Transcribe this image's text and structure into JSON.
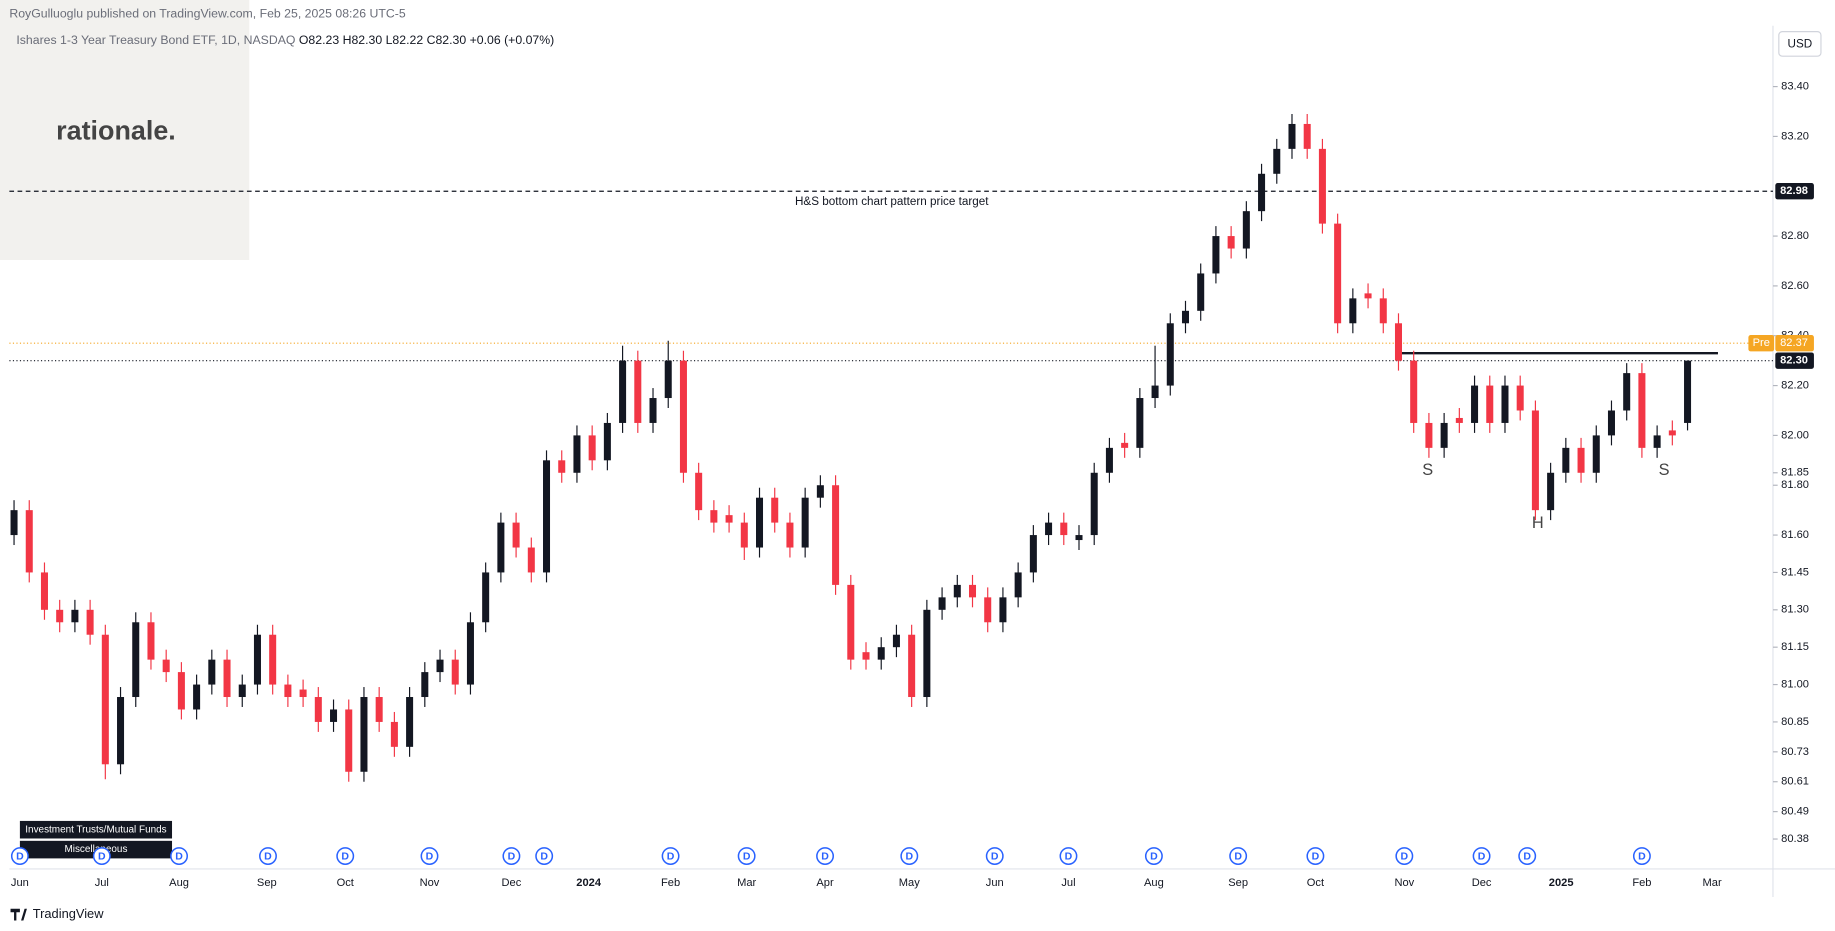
{
  "header": {
    "publisher": "RoyGulluoglu published on TradingView.com, Feb 25, 2025 08:26 UTC-5",
    "logo": "rationale.",
    "footer": "TradingView"
  },
  "legend": {
    "name": "Ishares 1-3 Year Treasury Bond ETF, 1D, NASDAQ",
    "open": "O82.23",
    "high": "H82.30",
    "low": "L82.22",
    "close": "C82.30",
    "change": "+0.06 (+0.07%)"
  },
  "tags": [
    "Investment Trusts/Mutual Funds",
    "Miscellaneous"
  ],
  "dividend_label": "D",
  "dividends": [
    "D",
    "D",
    "D",
    "D",
    "D",
    "D",
    "D",
    "D",
    "D",
    "D",
    "D",
    "D",
    "D",
    "D",
    "D",
    "D",
    "D",
    "D",
    "D",
    "D",
    "D"
  ],
  "chart_data": {
    "type": "candlestick",
    "currency": "USD",
    "up_color": "#131722",
    "down_color": "#f23645",
    "ylim": [
      80.26,
      83.63
    ],
    "yticks": [
      {
        "value": 83.4,
        "label": "83.40"
      },
      {
        "value": 83.2,
        "label": "83.20"
      },
      {
        "value": 82.8,
        "label": "82.80"
      },
      {
        "value": 82.6,
        "label": "82.60"
      },
      {
        "value": 82.4,
        "label": "82.40"
      },
      {
        "value": 82.2,
        "label": "82.20"
      },
      {
        "value": 82,
        "label": "82.00"
      },
      {
        "value": 81.8,
        "label": "81.80"
      },
      {
        "value": 81.6,
        "label": "81.60"
      },
      81.45,
      {
        "value": 81.3,
        "label": "81.30"
      },
      81.15,
      {
        "value": 81,
        "label": "81.00"
      },
      81.85,
      80.85,
      80.73,
      80.61,
      80.49,
      80.38
    ],
    "categories": [
      "Jun",
      "Jul",
      "Aug",
      "Sep",
      "Oct",
      "Nov",
      "Dec",
      "2024",
      "Feb",
      "Mar",
      "Apr",
      "May",
      "Jun",
      "Jul",
      "Aug",
      "Sep",
      "Oct",
      "Nov",
      "Dec",
      "2025",
      "Feb",
      "Mar"
    ],
    "candles": [
      [
        81.6,
        81.74,
        81.56,
        81.7
      ],
      [
        81.7,
        81.74,
        81.41,
        81.45
      ],
      [
        81.45,
        81.49,
        81.26,
        81.3
      ],
      [
        81.3,
        81.34,
        81.21,
        81.25
      ],
      [
        81.25,
        81.34,
        81.21,
        81.3
      ],
      [
        81.3,
        81.34,
        81.16,
        81.2
      ],
      [
        81.2,
        81.24,
        80.62,
        80.68
      ],
      [
        80.68,
        80.99,
        80.64,
        80.95
      ],
      [
        80.95,
        81.29,
        80.91,
        81.25
      ],
      [
        81.25,
        81.29,
        81.06,
        81.1
      ],
      [
        81.1,
        81.14,
        81.01,
        81.05
      ],
      [
        81.05,
        81.09,
        80.86,
        80.9
      ],
      [
        80.9,
        81.04,
        80.86,
        81.0
      ],
      [
        81.0,
        81.14,
        80.96,
        81.1
      ],
      [
        81.1,
        81.14,
        80.91,
        80.95
      ],
      [
        80.95,
        81.04,
        80.91,
        81.0
      ],
      [
        81.0,
        81.24,
        80.96,
        81.2
      ],
      [
        81.2,
        81.24,
        80.96,
        81.0
      ],
      [
        81.0,
        81.04,
        80.91,
        80.95
      ],
      [
        80.98,
        81.02,
        80.91,
        80.95
      ],
      [
        80.95,
        80.99,
        80.81,
        80.85
      ],
      [
        80.85,
        80.94,
        80.81,
        80.9
      ],
      [
        80.9,
        80.94,
        80.61,
        80.65
      ],
      [
        80.65,
        80.99,
        80.61,
        80.95
      ],
      [
        80.95,
        80.99,
        80.81,
        80.85
      ],
      [
        80.85,
        80.89,
        80.71,
        80.75
      ],
      [
        80.75,
        80.99,
        80.71,
        80.95
      ],
      [
        80.95,
        81.09,
        80.91,
        81.05
      ],
      [
        81.05,
        81.14,
        81.01,
        81.1
      ],
      [
        81.1,
        81.14,
        80.96,
        81.0
      ],
      [
        81.0,
        81.29,
        80.96,
        81.25
      ],
      [
        81.25,
        81.49,
        81.21,
        81.45
      ],
      [
        81.45,
        81.69,
        81.41,
        81.65
      ],
      [
        81.65,
        81.69,
        81.51,
        81.55
      ],
      [
        81.55,
        81.59,
        81.41,
        81.45
      ],
      [
        81.45,
        81.94,
        81.41,
        81.9
      ],
      [
        81.9,
        81.94,
        81.81,
        81.85
      ],
      [
        81.85,
        82.04,
        81.81,
        82.0
      ],
      [
        82.0,
        82.04,
        81.86,
        81.9
      ],
      [
        81.9,
        82.09,
        81.86,
        82.05
      ],
      [
        82.05,
        82.36,
        82.01,
        82.3
      ],
      [
        82.3,
        82.34,
        82.01,
        82.05
      ],
      [
        82.05,
        82.19,
        82.01,
        82.15
      ],
      [
        82.15,
        82.38,
        82.11,
        82.3
      ],
      [
        82.3,
        82.34,
        81.81,
        81.85
      ],
      [
        81.85,
        81.89,
        81.66,
        81.7
      ],
      [
        81.7,
        81.74,
        81.61,
        81.65
      ],
      [
        81.68,
        81.72,
        81.61,
        81.65
      ],
      [
        81.65,
        81.69,
        81.5,
        81.55
      ],
      [
        81.55,
        81.79,
        81.51,
        81.75
      ],
      [
        81.75,
        81.79,
        81.61,
        81.65
      ],
      [
        81.65,
        81.69,
        81.51,
        81.55
      ],
      [
        81.55,
        81.79,
        81.51,
        81.75
      ],
      [
        81.75,
        81.84,
        81.71,
        81.8
      ],
      [
        81.8,
        81.84,
        81.36,
        81.4
      ],
      [
        81.4,
        81.44,
        81.06,
        81.1
      ],
      [
        81.13,
        81.17,
        81.06,
        81.1
      ],
      [
        81.1,
        81.19,
        81.06,
        81.15
      ],
      [
        81.15,
        81.24,
        81.11,
        81.2
      ],
      [
        81.2,
        81.24,
        80.91,
        80.95
      ],
      [
        80.95,
        81.34,
        80.91,
        81.3
      ],
      [
        81.3,
        81.39,
        81.26,
        81.35
      ],
      [
        81.35,
        81.44,
        81.31,
        81.4
      ],
      [
        81.4,
        81.44,
        81.31,
        81.35
      ],
      [
        81.35,
        81.39,
        81.21,
        81.25
      ],
      [
        81.25,
        81.39,
        81.21,
        81.35
      ],
      [
        81.35,
        81.49,
        81.31,
        81.45
      ],
      [
        81.45,
        81.64,
        81.41,
        81.6
      ],
      [
        81.6,
        81.69,
        81.56,
        81.65
      ],
      [
        81.65,
        81.69,
        81.56,
        81.6
      ],
      [
        81.58,
        81.64,
        81.54,
        81.6
      ],
      [
        81.6,
        81.89,
        81.56,
        81.85
      ],
      [
        81.85,
        81.99,
        81.81,
        81.95
      ],
      [
        81.97,
        82.01,
        81.91,
        81.95
      ],
      [
        81.95,
        82.19,
        81.91,
        82.15
      ],
      [
        82.15,
        82.36,
        82.11,
        82.2
      ],
      [
        82.2,
        82.49,
        82.16,
        82.45
      ],
      [
        82.45,
        82.54,
        82.41,
        82.5
      ],
      [
        82.5,
        82.69,
        82.46,
        82.65
      ],
      [
        82.65,
        82.84,
        82.61,
        82.8
      ],
      [
        82.8,
        82.84,
        82.71,
        82.75
      ],
      [
        82.75,
        82.94,
        82.71,
        82.9
      ],
      [
        82.9,
        83.09,
        82.86,
        83.05
      ],
      [
        83.05,
        83.19,
        83.01,
        83.15
      ],
      [
        83.15,
        83.29,
        83.11,
        83.25
      ],
      [
        83.25,
        83.29,
        83.11,
        83.15
      ],
      [
        83.15,
        83.19,
        82.81,
        82.85
      ],
      [
        82.85,
        82.89,
        82.41,
        82.45
      ],
      [
        82.45,
        82.59,
        82.41,
        82.55
      ],
      [
        82.57,
        82.61,
        82.51,
        82.55
      ],
      [
        82.55,
        82.59,
        82.41,
        82.45
      ],
      [
        82.45,
        82.49,
        82.26,
        82.3
      ],
      [
        82.3,
        82.34,
        82.01,
        82.05
      ],
      [
        82.05,
        82.09,
        81.91,
        81.95
      ],
      [
        81.95,
        82.09,
        81.91,
        82.05
      ],
      [
        82.07,
        82.11,
        82.01,
        82.05
      ],
      [
        82.05,
        82.24,
        82.01,
        82.2
      ],
      [
        82.2,
        82.24,
        82.01,
        82.05
      ],
      [
        82.05,
        82.24,
        82.01,
        82.2
      ],
      [
        82.2,
        82.24,
        82.06,
        82.1
      ],
      [
        82.1,
        82.14,
        81.66,
        81.7
      ],
      [
        81.7,
        81.89,
        81.66,
        81.85
      ],
      [
        81.85,
        81.99,
        81.81,
        81.95
      ],
      [
        81.95,
        81.99,
        81.81,
        81.85
      ],
      [
        81.85,
        82.04,
        81.81,
        82.0
      ],
      [
        82.0,
        82.14,
        81.96,
        82.1
      ],
      [
        82.1,
        82.29,
        82.06,
        82.25
      ],
      [
        82.25,
        82.29,
        81.91,
        81.95
      ],
      [
        81.95,
        82.04,
        81.91,
        82.0
      ],
      [
        82.02,
        82.06,
        81.96,
        82.0
      ],
      [
        82.05,
        82.3,
        82.02,
        82.3
      ]
    ],
    "target_line": {
      "value": 82.98,
      "label": "H&S bottom chart pattern price target"
    },
    "neckline": 82.33,
    "premarket": {
      "label": "Pre",
      "value": 82.37
    },
    "last_price": 82.3,
    "pattern_labels": [
      "S",
      "H",
      "S"
    ]
  }
}
